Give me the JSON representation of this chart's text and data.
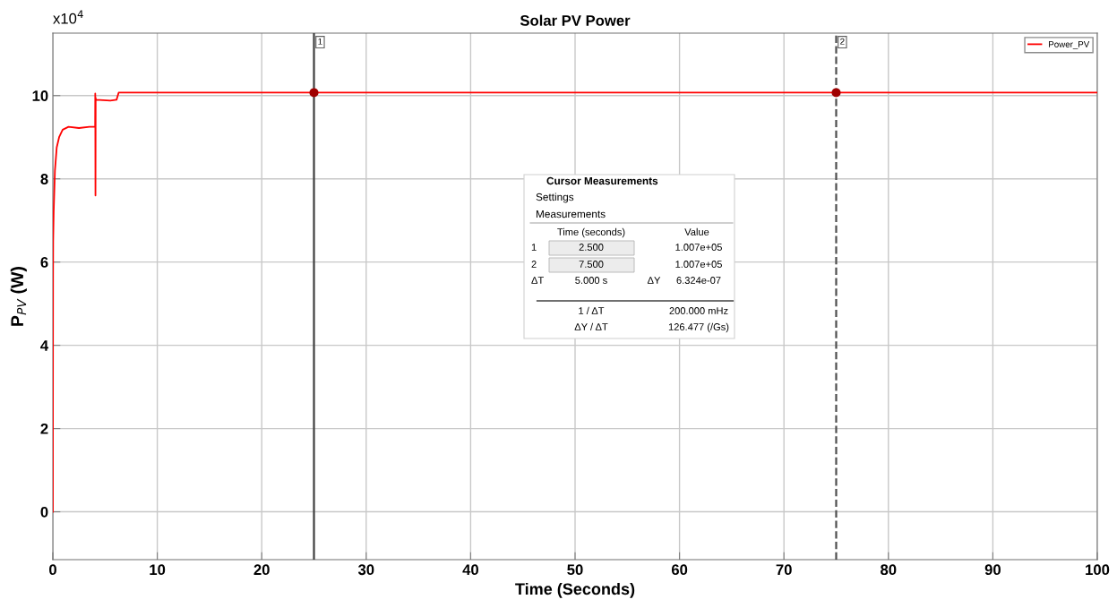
{
  "chart_data": {
    "type": "line",
    "title": "Solar PV Power",
    "xlabel": "Time (Seconds)",
    "ylabel": "P$_{PV}$ (W)",
    "xlim": [
      0,
      100
    ],
    "ylim": [
      -1.15,
      11.5
    ],
    "xticks": [
      0,
      10,
      20,
      30,
      40,
      50,
      60,
      70,
      80,
      90,
      100
    ],
    "yticks": [
      0,
      2,
      4,
      6,
      8,
      10
    ],
    "grid": true,
    "legend": "top right",
    "series": [
      {
        "name": "Power_PV",
        "color": "#ff0000",
        "x": [
          0,
          0.02,
          0.03,
          0.08,
          0.2,
          0.37,
          0.6,
          0.94,
          1.5,
          2.5,
          3.5,
          4.05,
          4.06,
          4.08,
          4.1,
          4.12,
          5.5,
          6.1,
          6.3,
          25,
          75,
          100
        ],
        "values": [
          0,
          5.6,
          6.5,
          7.2,
          8.2,
          8.75,
          9.0,
          9.18,
          9.25,
          9.22,
          9.25,
          9.25,
          10.05,
          7.6,
          9.95,
          9.9,
          9.88,
          9.9,
          10.07,
          10.07,
          10.07,
          10.07
        ]
      },
      {
        "type": "scatter",
        "color": "#a00000",
        "x": [
          25,
          75
        ],
        "values": [
          10.07,
          10.07
        ]
      }
    ],
    "ref_lines": [
      {
        "axis": "x",
        "value": 25,
        "color": "#404040",
        "line_style": "solid"
      },
      {
        "axis": "x",
        "value": 75,
        "color": "#505050",
        "line_style": "dashed"
      }
    ],
    "annotations": [
      "x10$^{4}$",
      "Cursor Measurements",
      "Settings",
      "Measurements",
      "Time (seconds)",
      "Value",
      "1",
      "2.500",
      "1.007e+05",
      "2",
      "7.500",
      "1.007e+05",
      "ΔT",
      "5.000 s",
      "ΔY",
      "6.324e-07",
      "1 / ΔT",
      "200.000 mHz",
      "ΔY / ΔT",
      "126.477 (/Gs)",
      {
        "text": "1",
        "x": 25,
        "y": 11.5
      },
      {
        "text": "2",
        "x": 75,
        "y": 11.5
      }
    ]
  }
}
